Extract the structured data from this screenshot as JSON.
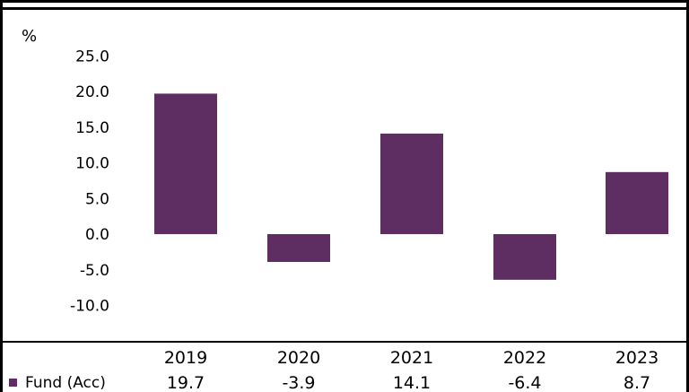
{
  "chart_data": {
    "type": "bar",
    "ylabel": "%",
    "ylim": [
      -10,
      25
    ],
    "yticks": [
      "25.0",
      "20.0",
      "15.0",
      "10.0",
      "5.0",
      "0.0",
      "-5.0",
      "-10.0"
    ],
    "ytick_values": [
      25,
      20,
      15,
      10,
      5,
      0,
      -5,
      -10
    ],
    "categories": [
      "2019",
      "2020",
      "2021",
      "2022",
      "2023"
    ],
    "series": [
      {
        "name": "Fund (Acc)",
        "values": [
          19.7,
          -3.9,
          14.1,
          -6.4,
          8.7
        ],
        "labels": [
          "19.7",
          "-3.9",
          "14.1",
          "-6.4",
          "8.7"
        ],
        "color": "#5e2d62"
      }
    ],
    "grid": false,
    "legend": "bottom-left in table"
  }
}
